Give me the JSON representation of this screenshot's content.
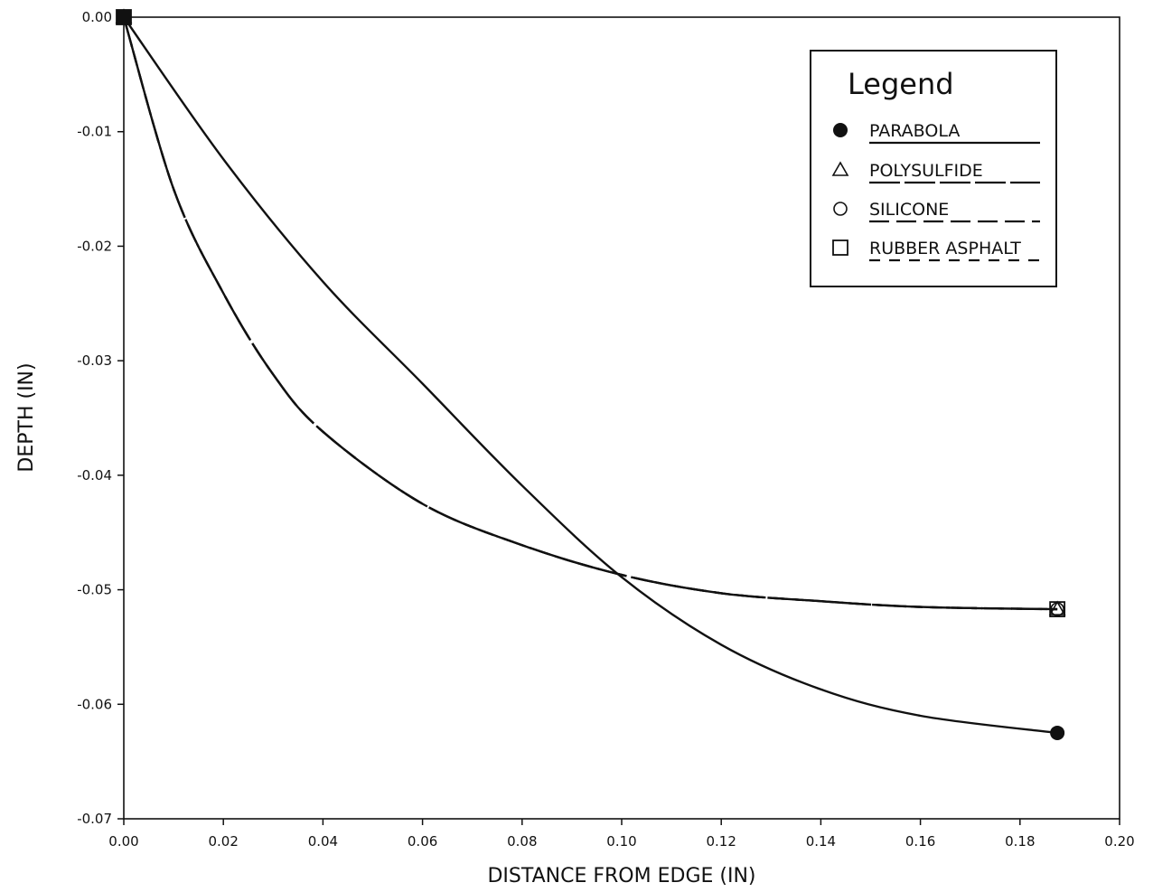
{
  "chart_data": {
    "type": "line",
    "title": "",
    "xlabel": "DISTANCE FROM EDGE (IN)",
    "ylabel": "DEPTH (IN)",
    "xlim": [
      0.0,
      0.2
    ],
    "ylim": [
      -0.07,
      0.0
    ],
    "x_ticks": [
      "0.00",
      "0.02",
      "0.04",
      "0.06",
      "0.08",
      "0.10",
      "0.12",
      "0.14",
      "0.16",
      "0.18",
      "0.20"
    ],
    "y_ticks": [
      "0.00",
      "-0.01",
      "-0.02",
      "-0.03",
      "-0.04",
      "-0.05",
      "-0.06",
      "-0.07"
    ],
    "grid": false,
    "legend": {
      "title": "Legend",
      "placement": "top-right",
      "entries": [
        "PARABOLA",
        "POLYSULFIDE",
        "SILICONE",
        "RUBBER ASPHALT"
      ]
    },
    "series": [
      {
        "name": "PARABOLA",
        "marker": "filled-circle",
        "line_style": "solid",
        "x": [
          0.0,
          0.02,
          0.04,
          0.06,
          0.08,
          0.1,
          0.12,
          0.14,
          0.16,
          0.1875
        ],
        "y": [
          0.0,
          -0.0124,
          -0.0231,
          -0.032,
          -0.0409,
          -0.0489,
          -0.0548,
          -0.0587,
          -0.061,
          -0.0625
        ]
      },
      {
        "name": "POLYSULFIDE",
        "marker": "open-triangle",
        "line_style": "dash-long",
        "x": [
          0.0,
          0.01,
          0.02,
          0.03,
          0.04,
          0.06,
          0.08,
          0.1,
          0.12,
          0.14,
          0.16,
          0.1875
        ],
        "y": [
          0.0,
          -0.015,
          -0.0241,
          -0.0312,
          -0.0362,
          -0.0425,
          -0.0461,
          -0.0487,
          -0.0503,
          -0.051,
          -0.0515,
          -0.0517
        ]
      },
      {
        "name": "SILICONE",
        "marker": "open-circle",
        "line_style": "dash",
        "x": [
          0.0,
          0.01,
          0.02,
          0.03,
          0.04,
          0.06,
          0.08,
          0.1,
          0.12,
          0.14,
          0.16,
          0.1875
        ],
        "y": [
          0.0,
          -0.015,
          -0.0241,
          -0.0312,
          -0.0362,
          -0.0425,
          -0.0461,
          -0.0487,
          -0.0503,
          -0.051,
          -0.0515,
          -0.0517
        ]
      },
      {
        "name": "RUBBER ASPHALT",
        "marker": "open-square",
        "line_style": "dash-short",
        "x": [
          0.0,
          0.01,
          0.02,
          0.03,
          0.04,
          0.06,
          0.08,
          0.1,
          0.12,
          0.14,
          0.16,
          0.1875
        ],
        "y": [
          0.0,
          -0.015,
          -0.0241,
          -0.0312,
          -0.0362,
          -0.0425,
          -0.0461,
          -0.0487,
          -0.0503,
          -0.051,
          -0.0515,
          -0.0517
        ]
      }
    ]
  }
}
